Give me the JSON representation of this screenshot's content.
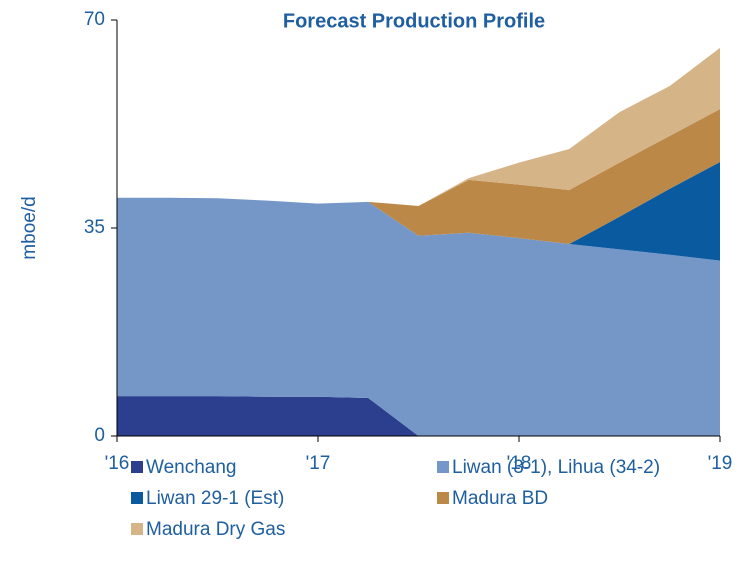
{
  "chart_data": {
    "type": "stacked-area",
    "title": "Forecast Production Profile",
    "y_label": "mboe/d",
    "x": [
      2016,
      2016.25,
      2016.5,
      2016.75,
      2017,
      2017.25,
      2017.5,
      2017.75,
      2018,
      2018.25,
      2018.5,
      2018.75,
      2019
    ],
    "xlim": [
      2016,
      2019
    ],
    "xticks": [
      {
        "value": 2016,
        "label": "'16"
      },
      {
        "value": 2017,
        "label": "'17"
      },
      {
        "value": 2018,
        "label": "'18"
      },
      {
        "value": 2019,
        "label": "'19"
      }
    ],
    "ylim": [
      0,
      70
    ],
    "yticks": [
      0,
      35,
      70
    ],
    "series": [
      {
        "name": "Wenchang",
        "color": "#2b3f8e",
        "values": [
          6.7,
          6.7,
          6.7,
          6.6,
          6.6,
          6.4,
          0,
          0,
          0,
          0,
          0,
          0,
          0
        ]
      },
      {
        "name": "Liwan (3-1), Lihua (34-2)",
        "color": "#7597c8",
        "values": [
          33.4,
          33.4,
          33.3,
          33.0,
          32.5,
          33.0,
          33.7,
          34.2,
          33.3,
          32.3,
          31.4,
          30.5,
          29.5
        ]
      },
      {
        "name": "Liwan 29-1 (Est)",
        "color": "#0a5aa0",
        "values": [
          0,
          0,
          0,
          0,
          0,
          0,
          0,
          0,
          0,
          0,
          5.5,
          11.1,
          16.6
        ]
      },
      {
        "name": "Madura BD",
        "color": "#bc8848",
        "values": [
          0,
          0,
          0,
          0,
          0,
          0,
          5.0,
          8.9,
          9.0,
          9.1,
          9.1,
          8.9,
          8.9
        ]
      },
      {
        "name": "Madura Dry Gas",
        "color": "#d5b488",
        "values": [
          0,
          0,
          0,
          0,
          0,
          0,
          0,
          0.3,
          3.7,
          6.9,
          8.5,
          8.4,
          10.3
        ]
      }
    ]
  }
}
